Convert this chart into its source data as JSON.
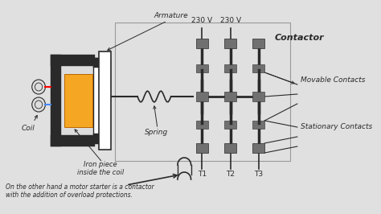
{
  "bg_color": "#e0e0e0",
  "iron_color": "#f5a623",
  "dark": "#2a2a2a",
  "gray_contact": "#707070",
  "white": "#ffffff",
  "labels": {
    "armature": "Armature",
    "coil": "Coil",
    "iron": "Iron piece\ninside the coil",
    "spring": "Spring",
    "contactor": "Contactor",
    "movable": "Movable Contacts",
    "stationary": "Stationary Contacts",
    "v1": "230 V",
    "v2": "230 V",
    "t1": "T1",
    "t2": "T2",
    "t3": "T3",
    "note": "On the other hand a motor starter is a contactor\nwith the addition of overload protections."
  }
}
